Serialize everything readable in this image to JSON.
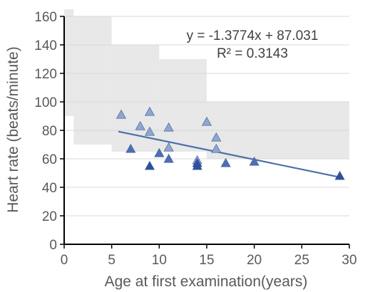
{
  "chart_data": {
    "type": "scatter",
    "xlabel": "Age at first examination(years)",
    "ylabel": "Heart rate (beats/minute)",
    "xlim": [
      0,
      30
    ],
    "ylim": [
      0,
      160
    ],
    "xticks": [
      "0",
      "5",
      "10",
      "15",
      "20",
      "25",
      "30"
    ],
    "yticks": [
      "0",
      "20",
      "40",
      "60",
      "80",
      "100",
      "120",
      "140",
      "160"
    ],
    "grid": "horizontal",
    "legend": "none",
    "annotations": {
      "equation": "y = -1.3774x + 87.031",
      "r_squared": "R² = 0.3143"
    },
    "trendline": {
      "slope": -1.3774,
      "intercept": 87.031,
      "x_range": [
        5.7,
        29
      ],
      "color": "#4a6fa8"
    },
    "shaded_bands": [
      {
        "x": [
          0,
          1
        ],
        "y": [
          90,
          165
        ]
      },
      {
        "x": [
          1,
          5
        ],
        "y": [
          70,
          160
        ]
      },
      {
        "x": [
          5,
          10
        ],
        "y": [
          65,
          140
        ]
      },
      {
        "x": [
          10,
          15
        ],
        "y": [
          65,
          130
        ]
      },
      {
        "x": [
          15,
          30
        ],
        "y": [
          60,
          100
        ]
      }
    ],
    "band_color": "#e8e8e8",
    "points": [
      {
        "x": 6,
        "y": 91,
        "color": "#8fa6cf"
      },
      {
        "x": 7,
        "y": 67,
        "color": "#4d6fb3"
      },
      {
        "x": 8,
        "y": 83,
        "color": "#8fa6cf"
      },
      {
        "x": 9,
        "y": 93,
        "color": "#8fa6cf"
      },
      {
        "x": 9,
        "y": 79,
        "color": "#8fa6cf"
      },
      {
        "x": 9,
        "y": 55,
        "color": "#2f4f9e"
      },
      {
        "x": 10,
        "y": 64,
        "color": "#4d6fb3"
      },
      {
        "x": 11,
        "y": 82,
        "color": "#8fa6cf"
      },
      {
        "x": 11,
        "y": 68,
        "color": "#8fa6cf"
      },
      {
        "x": 11,
        "y": 60,
        "color": "#4d6fb3"
      },
      {
        "x": 14,
        "y": 59,
        "color": "#8fa6cf"
      },
      {
        "x": 14,
        "y": 57,
        "color": "#2f4f9e"
      },
      {
        "x": 14,
        "y": 55,
        "color": "#2f4f9e"
      },
      {
        "x": 15,
        "y": 86,
        "color": "#8fa6cf"
      },
      {
        "x": 16,
        "y": 75,
        "color": "#8fa6cf"
      },
      {
        "x": 16,
        "y": 67,
        "color": "#8fa6cf"
      },
      {
        "x": 17,
        "y": 57,
        "color": "#4d6fb3"
      },
      {
        "x": 20,
        "y": 58,
        "color": "#4d6fb3"
      },
      {
        "x": 29,
        "y": 48,
        "color": "#2f4f9e"
      }
    ]
  }
}
